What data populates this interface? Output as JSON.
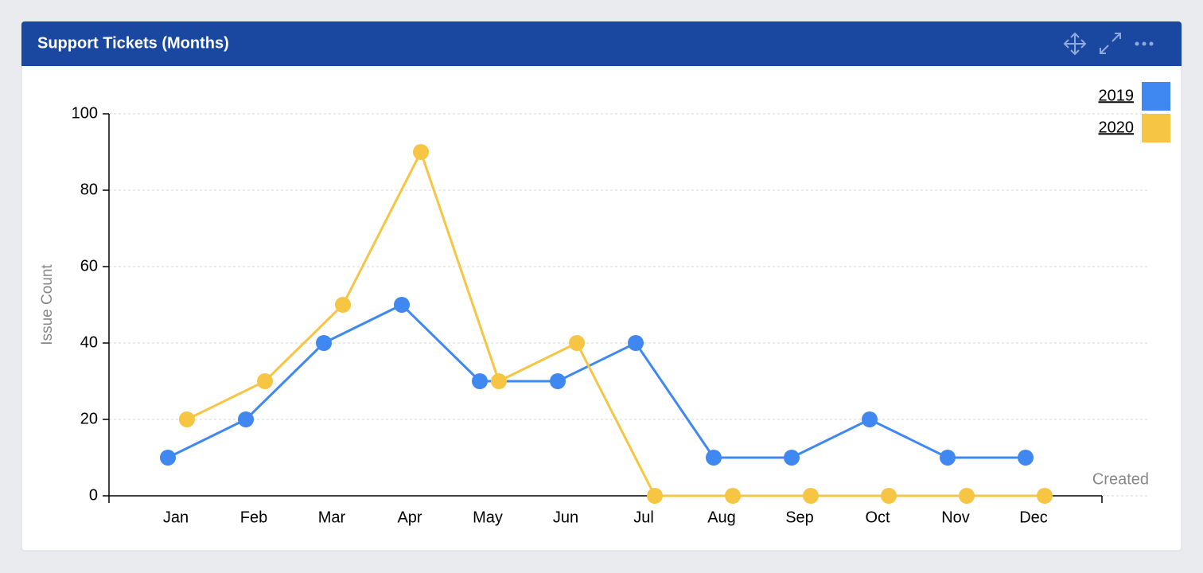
{
  "chart_data": {
    "type": "line",
    "title": "Support Tickets (Months)",
    "y_label": "Issue Count",
    "x_label": "Created",
    "categories": [
      "Jan",
      "Feb",
      "Mar",
      "Apr",
      "May",
      "Jun",
      "Jul",
      "Aug",
      "Sep",
      "Oct",
      "Nov",
      "Dec"
    ],
    "series": [
      {
        "name": "2019",
        "color": "#3f88f2",
        "values": [
          10,
          20,
          40,
          50,
          30,
          30,
          40,
          10,
          10,
          20,
          10,
          10
        ]
      },
      {
        "name": "2020",
        "color": "#f7c544",
        "values": [
          20,
          30,
          50,
          90,
          30,
          40,
          0,
          0,
          0,
          0,
          0,
          0
        ]
      }
    ],
    "ylim": [
      0,
      100
    ],
    "yticks": [
      0,
      20,
      40,
      60,
      80,
      100
    ],
    "grid": true,
    "legend": "top-right"
  }
}
